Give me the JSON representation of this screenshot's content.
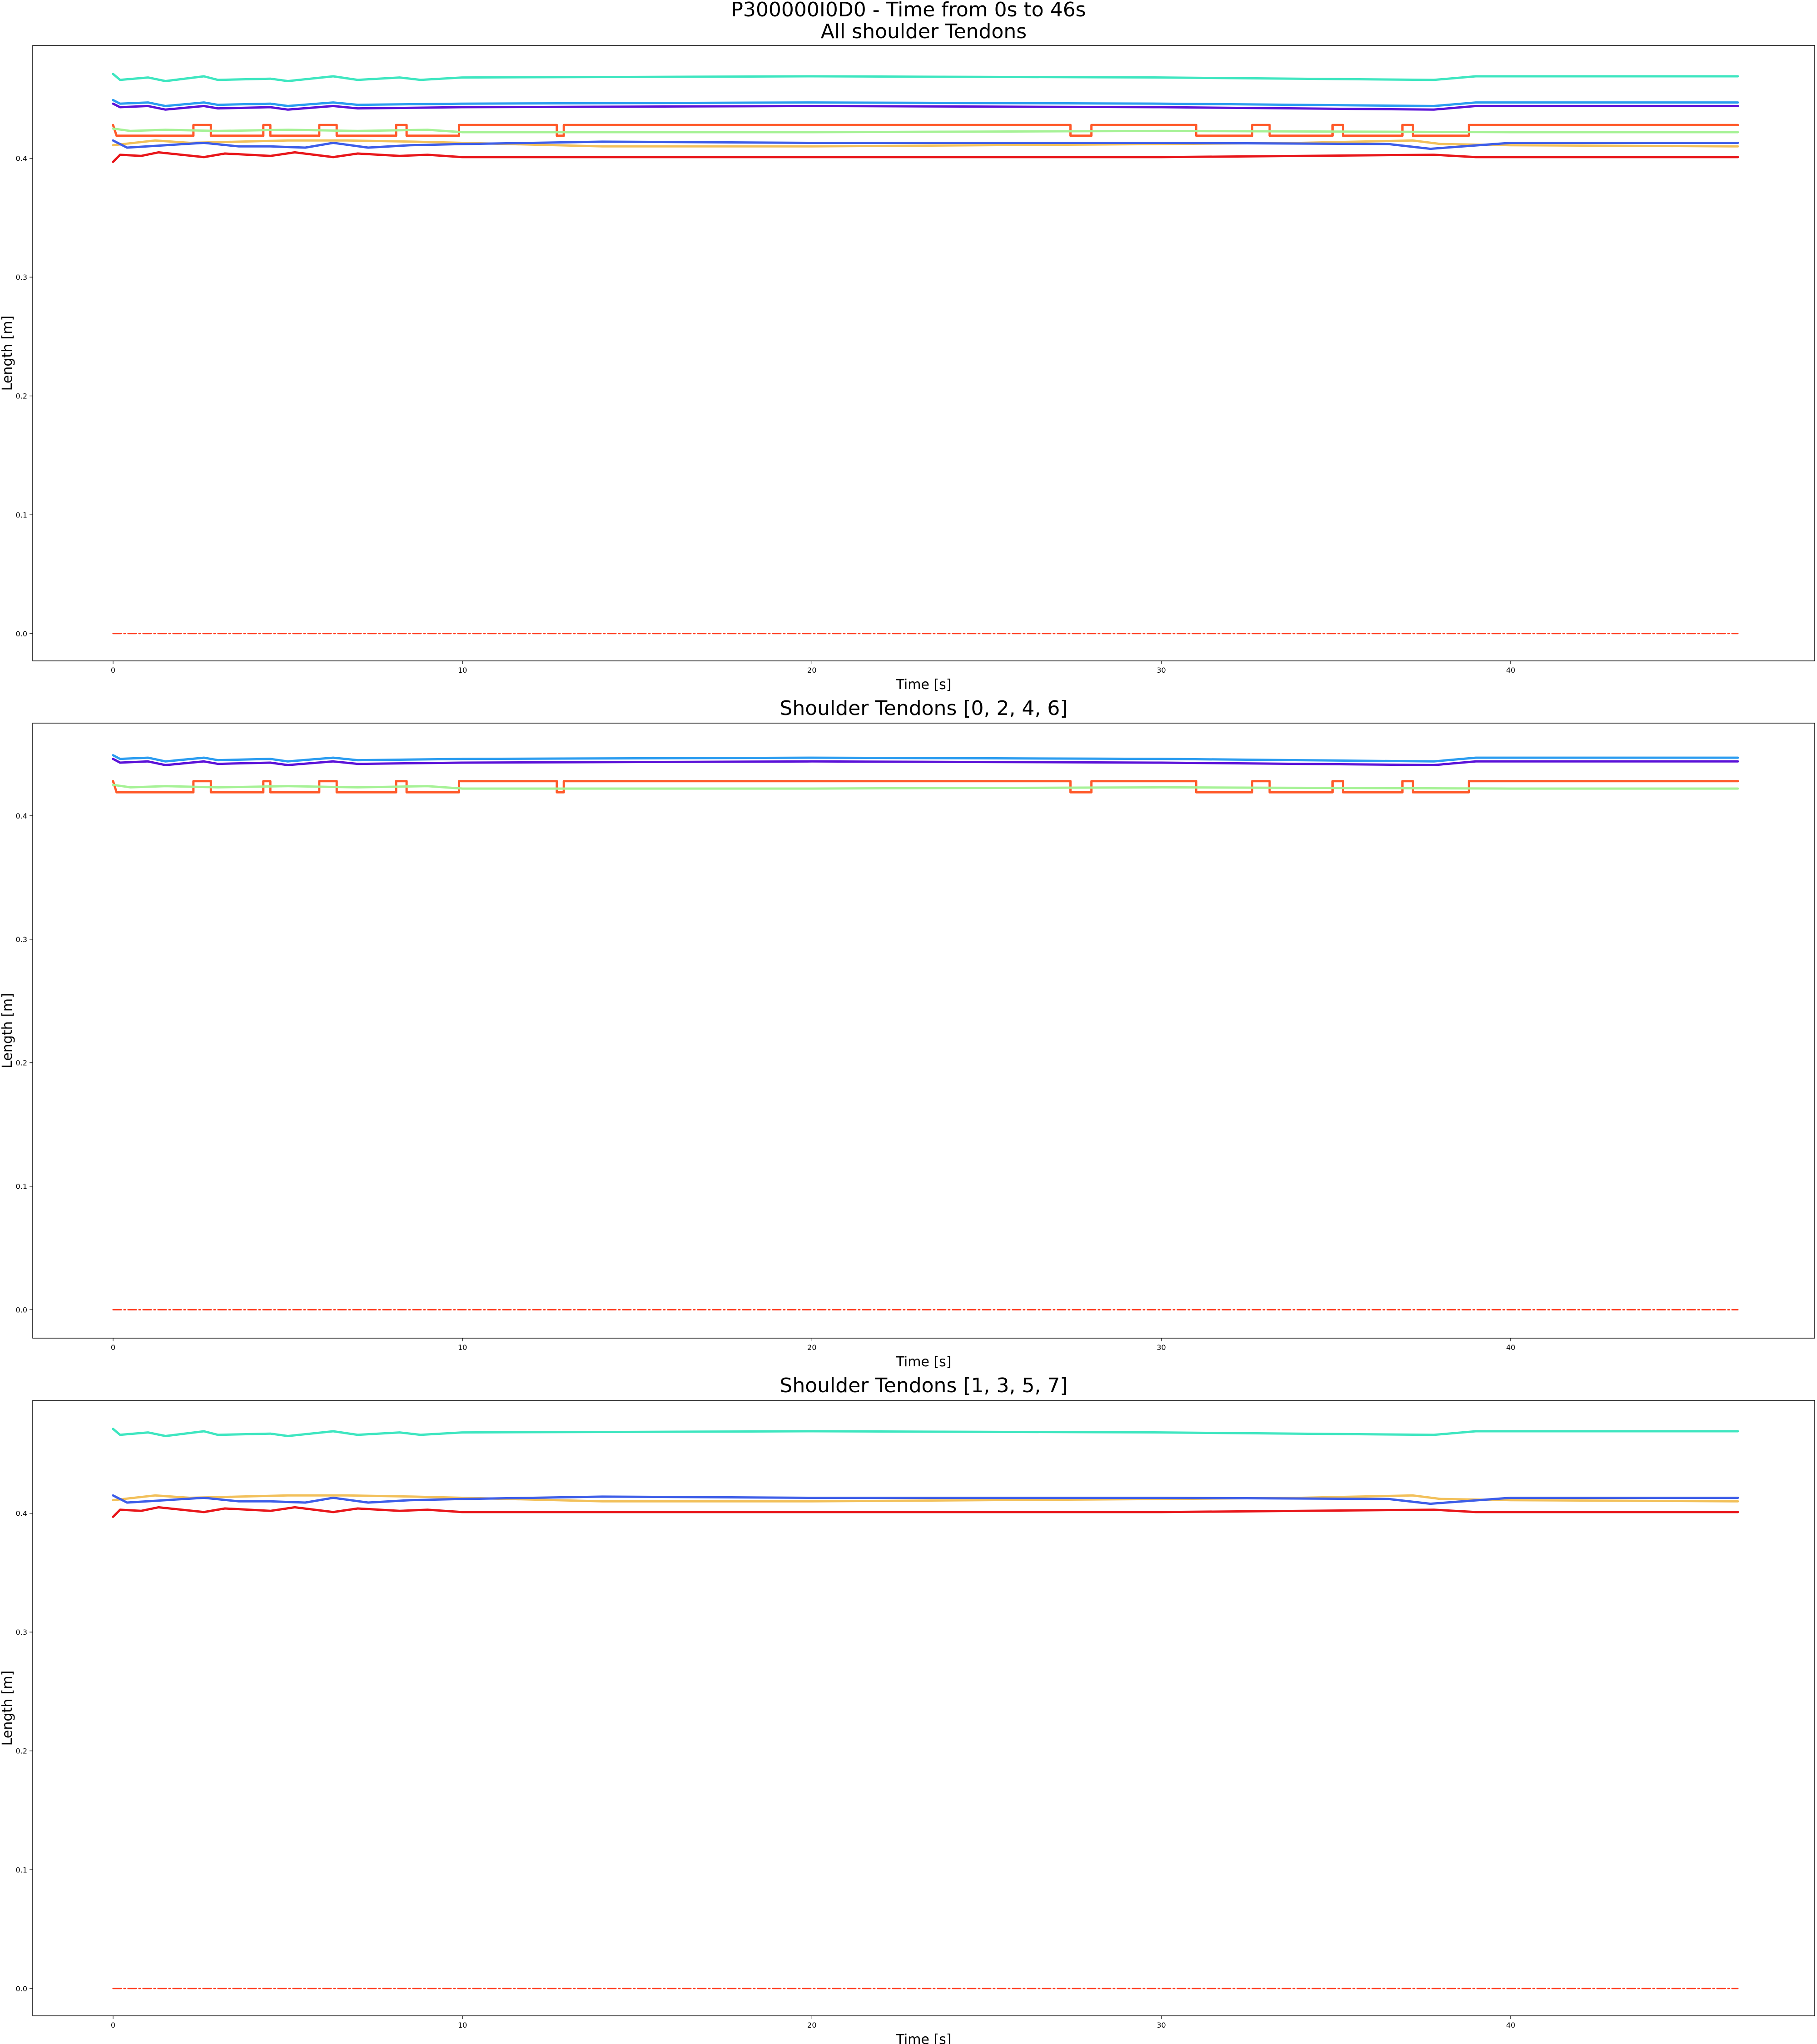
{
  "figure": {
    "suptitle": "P300000I0D0 - Time from 0s to 46s"
  },
  "chart_data": [
    {
      "type": "line",
      "title": "All shoulder Tendons",
      "xlabel": "Time [s]",
      "ylabel": "Length [m]",
      "xlim": [
        -2.3,
        48.7
      ],
      "ylim": [
        -0.023,
        0.495
      ],
      "xticks": [
        "0",
        "10",
        "20",
        "30",
        "40"
      ],
      "yticks": [
        "0.0",
        "0.1",
        "0.2",
        "0.3",
        "0.4"
      ],
      "grid": false,
      "series": [
        {
          "color": "#3ee6c0",
          "x": [
            0,
            0.2,
            1,
            1.5,
            2.6,
            3.0,
            4.5,
            5.0,
            6.3,
            7.0,
            8.2,
            8.8,
            10,
            20,
            30,
            37.8,
            39,
            46.5
          ],
          "y": [
            0.471,
            0.466,
            0.468,
            0.465,
            0.469,
            0.466,
            0.467,
            0.465,
            0.469,
            0.466,
            0.468,
            0.466,
            0.468,
            0.469,
            0.468,
            0.466,
            0.469,
            0.469
          ]
        },
        {
          "color": "#2a9cf0",
          "x": [
            0,
            0.2,
            1,
            1.5,
            2.6,
            3.0,
            4.5,
            5.0,
            6.3,
            7.0,
            10,
            20,
            30,
            37.8,
            39,
            46.5
          ],
          "y": [
            0.449,
            0.446,
            0.447,
            0.444,
            0.447,
            0.445,
            0.446,
            0.444,
            0.447,
            0.445,
            0.446,
            0.447,
            0.446,
            0.444,
            0.447,
            0.447
          ]
        },
        {
          "color": "#5b12d8",
          "x": [
            0,
            0.2,
            1,
            1.5,
            2.6,
            3.0,
            4.5,
            5.0,
            6.3,
            7.0,
            10,
            20,
            30,
            37.8,
            39,
            46.5
          ],
          "y": [
            0.446,
            0.443,
            0.444,
            0.441,
            0.444,
            0.442,
            0.443,
            0.441,
            0.444,
            0.442,
            0.443,
            0.444,
            0.443,
            0.441,
            0.444,
            0.444
          ]
        },
        {
          "color": "#ff5a2a",
          "step": true,
          "x": [
            0,
            0.1,
            2.3,
            2.3,
            2.8,
            2.8,
            4.3,
            4.3,
            4.5,
            4.5,
            5.9,
            5.9,
            6.4,
            6.4,
            8.1,
            8.1,
            8.4,
            8.4,
            9.9,
            9.9,
            12.7,
            12.7,
            12.9,
            12.9,
            27.4,
            27.4,
            28.0,
            28.0,
            31.0,
            31.0,
            32.6,
            32.6,
            33.1,
            33.1,
            34.9,
            34.9,
            35.2,
            35.2,
            36.9,
            36.9,
            37.2,
            37.2,
            38.8,
            38.8,
            46.5
          ],
          "y": [
            0.428,
            0.419,
            0.419,
            0.428,
            0.428,
            0.419,
            0.419,
            0.428,
            0.428,
            0.419,
            0.419,
            0.428,
            0.428,
            0.419,
            0.419,
            0.428,
            0.428,
            0.419,
            0.419,
            0.428,
            0.428,
            0.419,
            0.419,
            0.428,
            0.428,
            0.419,
            0.419,
            0.428,
            0.428,
            0.419,
            0.419,
            0.428,
            0.428,
            0.419,
            0.419,
            0.428,
            0.428,
            0.419,
            0.419,
            0.428,
            0.428,
            0.419,
            0.419,
            0.428,
            0.428
          ]
        },
        {
          "color": "#a6f296",
          "x": [
            0,
            0.5,
            1.5,
            3,
            5,
            7,
            9,
            10,
            20,
            30,
            40,
            46.5
          ],
          "y": [
            0.425,
            0.423,
            0.424,
            0.423,
            0.424,
            0.423,
            0.424,
            0.422,
            0.422,
            0.423,
            0.422,
            0.422
          ]
        },
        {
          "color": "#f2c05a",
          "x": [
            0,
            1.2,
            2.2,
            3.6,
            5.0,
            6.7,
            8.6,
            10,
            14,
            20,
            30,
            34,
            37.2,
            38.0,
            40,
            46.5
          ],
          "y": [
            0.411,
            0.415,
            0.413,
            0.414,
            0.415,
            0.415,
            0.414,
            0.413,
            0.41,
            0.41,
            0.412,
            0.413,
            0.415,
            0.412,
            0.411,
            0.41
          ]
        },
        {
          "color": "#3d5de8",
          "x": [
            0,
            0.4,
            1.5,
            2.6,
            3.6,
            4.5,
            5.5,
            6.3,
            7.3,
            8.5,
            10,
            14,
            20,
            30,
            36.5,
            37.7,
            40,
            46.5
          ],
          "y": [
            0.415,
            0.409,
            0.411,
            0.413,
            0.41,
            0.41,
            0.409,
            0.413,
            0.409,
            0.411,
            0.412,
            0.414,
            0.413,
            0.413,
            0.412,
            0.408,
            0.413,
            0.413
          ]
        },
        {
          "color": "#e8161a",
          "x": [
            0,
            0.2,
            0.8,
            1.3,
            2.6,
            3.2,
            4.5,
            5.2,
            6.3,
            7.0,
            8.2,
            9.0,
            10,
            20,
            30,
            37.8,
            39,
            46.5
          ],
          "y": [
            0.397,
            0.403,
            0.402,
            0.405,
            0.401,
            0.404,
            0.402,
            0.405,
            0.401,
            0.404,
            0.402,
            0.403,
            0.401,
            0.401,
            0.401,
            0.403,
            0.401,
            0.401
          ]
        },
        {
          "color": "#ff3b1f",
          "dashed": true,
          "x": [
            0,
            46.5
          ],
          "y": [
            0.0,
            0.0
          ]
        }
      ]
    },
    {
      "type": "line",
      "title": "Shoulder Tendons [0, 2, 4, 6]",
      "xlabel": "Time [s]",
      "ylabel": "Length [m]",
      "xlim": [
        -2.3,
        48.7
      ],
      "ylim": [
        -0.023,
        0.475
      ],
      "xticks": [
        "0",
        "10",
        "20",
        "30",
        "40"
      ],
      "yticks": [
        "0.0",
        "0.1",
        "0.2",
        "0.3",
        "0.4"
      ],
      "grid": false,
      "series": [
        {
          "color": "#2a9cf0",
          "x": [
            0,
            0.2,
            1,
            1.5,
            2.6,
            3.0,
            4.5,
            5.0,
            6.3,
            7.0,
            10,
            20,
            30,
            37.8,
            39,
            46.5
          ],
          "y": [
            0.449,
            0.446,
            0.447,
            0.444,
            0.447,
            0.445,
            0.446,
            0.444,
            0.447,
            0.445,
            0.446,
            0.447,
            0.446,
            0.444,
            0.447,
            0.447
          ]
        },
        {
          "color": "#5b12d8",
          "x": [
            0,
            0.2,
            1,
            1.5,
            2.6,
            3.0,
            4.5,
            5.0,
            6.3,
            7.0,
            10,
            20,
            30,
            37.8,
            39,
            46.5
          ],
          "y": [
            0.446,
            0.443,
            0.444,
            0.441,
            0.444,
            0.442,
            0.443,
            0.441,
            0.444,
            0.442,
            0.443,
            0.444,
            0.443,
            0.441,
            0.444,
            0.444
          ]
        },
        {
          "color": "#ff5a2a",
          "step": true,
          "x": [
            0,
            0.1,
            2.3,
            2.3,
            2.8,
            2.8,
            4.3,
            4.3,
            4.5,
            4.5,
            5.9,
            5.9,
            6.4,
            6.4,
            8.1,
            8.1,
            8.4,
            8.4,
            9.9,
            9.9,
            12.7,
            12.7,
            12.9,
            12.9,
            27.4,
            27.4,
            28.0,
            28.0,
            31.0,
            31.0,
            32.6,
            32.6,
            33.1,
            33.1,
            34.9,
            34.9,
            35.2,
            35.2,
            36.9,
            36.9,
            37.2,
            37.2,
            38.8,
            38.8,
            46.5
          ],
          "y": [
            0.428,
            0.419,
            0.419,
            0.428,
            0.428,
            0.419,
            0.419,
            0.428,
            0.428,
            0.419,
            0.419,
            0.428,
            0.428,
            0.419,
            0.419,
            0.428,
            0.428,
            0.419,
            0.419,
            0.428,
            0.428,
            0.419,
            0.419,
            0.428,
            0.428,
            0.419,
            0.419,
            0.428,
            0.428,
            0.419,
            0.419,
            0.428,
            0.428,
            0.419,
            0.419,
            0.428,
            0.428,
            0.419,
            0.419,
            0.428,
            0.428,
            0.419,
            0.419,
            0.428,
            0.428
          ]
        },
        {
          "color": "#a6f296",
          "x": [
            0,
            0.5,
            1.5,
            3,
            5,
            7,
            9,
            10,
            20,
            30,
            40,
            46.5
          ],
          "y": [
            0.425,
            0.423,
            0.424,
            0.423,
            0.424,
            0.423,
            0.424,
            0.422,
            0.422,
            0.423,
            0.422,
            0.422
          ]
        },
        {
          "color": "#ff3b1f",
          "dashed": true,
          "x": [
            0,
            46.5
          ],
          "y": [
            0.0,
            0.0
          ]
        }
      ]
    },
    {
      "type": "line",
      "title": "Shoulder Tendons  [1, 3, 5, 7]",
      "xlabel": "Time [s]",
      "ylabel": "Length [m]",
      "xlim": [
        -2.3,
        48.7
      ],
      "ylim": [
        -0.023,
        0.495
      ],
      "xticks": [
        "0",
        "10",
        "20",
        "30",
        "40"
      ],
      "yticks": [
        "0.0",
        "0.1",
        "0.2",
        "0.3",
        "0.4"
      ],
      "grid": false,
      "series": [
        {
          "color": "#3ee6c0",
          "x": [
            0,
            0.2,
            1,
            1.5,
            2.6,
            3.0,
            4.5,
            5.0,
            6.3,
            7.0,
            8.2,
            8.8,
            10,
            20,
            30,
            37.8,
            39,
            46.5
          ],
          "y": [
            0.471,
            0.466,
            0.468,
            0.465,
            0.469,
            0.466,
            0.467,
            0.465,
            0.469,
            0.466,
            0.468,
            0.466,
            0.468,
            0.469,
            0.468,
            0.466,
            0.469,
            0.469
          ]
        },
        {
          "color": "#f2c05a",
          "x": [
            0,
            1.2,
            2.2,
            3.6,
            5.0,
            6.7,
            8.6,
            10,
            14,
            20,
            30,
            34,
            37.2,
            38.0,
            40,
            46.5
          ],
          "y": [
            0.411,
            0.415,
            0.413,
            0.414,
            0.415,
            0.415,
            0.414,
            0.413,
            0.41,
            0.41,
            0.412,
            0.413,
            0.415,
            0.412,
            0.411,
            0.41
          ]
        },
        {
          "color": "#3d5de8",
          "x": [
            0,
            0.4,
            1.5,
            2.6,
            3.6,
            4.5,
            5.5,
            6.3,
            7.3,
            8.5,
            10,
            14,
            20,
            30,
            36.5,
            37.7,
            40,
            46.5
          ],
          "y": [
            0.415,
            0.409,
            0.411,
            0.413,
            0.41,
            0.41,
            0.409,
            0.413,
            0.409,
            0.411,
            0.412,
            0.414,
            0.413,
            0.413,
            0.412,
            0.408,
            0.413,
            0.413
          ]
        },
        {
          "color": "#e8161a",
          "x": [
            0,
            0.2,
            0.8,
            1.3,
            2.6,
            3.2,
            4.5,
            5.2,
            6.3,
            7.0,
            8.2,
            9.0,
            10,
            20,
            30,
            37.8,
            39,
            46.5
          ],
          "y": [
            0.397,
            0.403,
            0.402,
            0.405,
            0.401,
            0.404,
            0.402,
            0.405,
            0.401,
            0.404,
            0.402,
            0.403,
            0.401,
            0.401,
            0.401,
            0.403,
            0.401,
            0.401
          ]
        },
        {
          "color": "#ff3b1f",
          "dashed": true,
          "x": [
            0,
            46.5
          ],
          "y": [
            0.0,
            0.0
          ]
        }
      ]
    }
  ]
}
